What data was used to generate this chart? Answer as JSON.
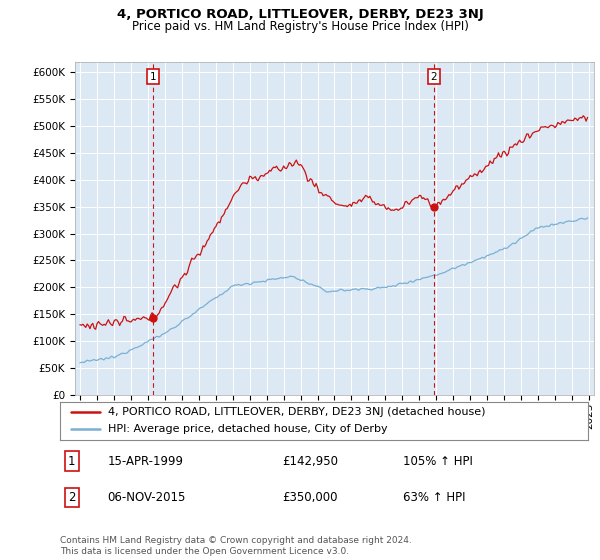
{
  "title": "4, PORTICO ROAD, LITTLEOVER, DERBY, DE23 3NJ",
  "subtitle": "Price paid vs. HM Land Registry's House Price Index (HPI)",
  "ylim": [
    0,
    620000
  ],
  "yticks": [
    0,
    50000,
    100000,
    150000,
    200000,
    250000,
    300000,
    350000,
    400000,
    450000,
    500000,
    550000,
    600000
  ],
  "xlim_start": 1994.7,
  "xlim_end": 2025.3,
  "sale1_year": 1999.29,
  "sale1_price": 142950,
  "sale1_label": "1",
  "sale2_year": 2015.85,
  "sale2_price": 350000,
  "sale2_label": "2",
  "hpi_color": "#7ab0d4",
  "price_color": "#cc1111",
  "dashed_line_color": "#cc1111",
  "bg_color": "#dce9f5",
  "legend_line1": "4, PORTICO ROAD, LITTLEOVER, DERBY, DE23 3NJ (detached house)",
  "legend_line2": "HPI: Average price, detached house, City of Derby",
  "table_row1_num": "1",
  "table_row1_date": "15-APR-1999",
  "table_row1_price": "£142,950",
  "table_row1_hpi": "105% ↑ HPI",
  "table_row2_num": "2",
  "table_row2_date": "06-NOV-2015",
  "table_row2_price": "£350,000",
  "table_row2_hpi": "63% ↑ HPI",
  "footnote": "Contains HM Land Registry data © Crown copyright and database right 2024.\nThis data is licensed under the Open Government Licence v3.0.",
  "title_fontsize": 9.5,
  "subtitle_fontsize": 8.5,
  "tick_fontsize": 7.5,
  "legend_fontsize": 8,
  "table_fontsize": 8.5,
  "footnote_fontsize": 6.5
}
